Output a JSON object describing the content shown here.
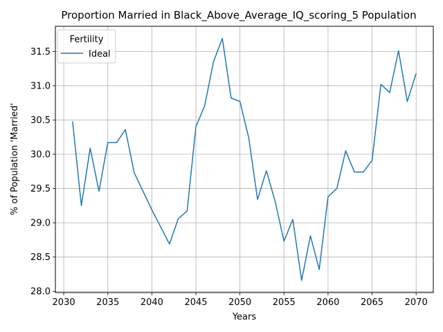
{
  "chart_data": {
    "type": "line",
    "title": "Proportion Married in Black_Above_Average_IQ_scoring_5 Population",
    "xlabel": "Years",
    "ylabel": "% of Population 'Married'",
    "xlim": [
      2029.05,
      2071.95
    ],
    "ylim": [
      27.982,
      31.867
    ],
    "x_ticks": [
      2030,
      2035,
      2040,
      2045,
      2050,
      2055,
      2060,
      2065,
      2070
    ],
    "y_ticks": [
      28.0,
      28.5,
      29.0,
      29.5,
      30.0,
      30.5,
      31.0,
      31.5
    ],
    "grid": true,
    "legend": {
      "title": "Fertility",
      "position": "upper-left"
    },
    "series": [
      {
        "name": "Ideal",
        "color": "#1f77b4",
        "x": [
          2031,
          2032,
          2033,
          2034,
          2035,
          2036,
          2037,
          2038,
          2039,
          2040,
          2041,
          2042,
          2043,
          2044,
          2045,
          2046,
          2047,
          2048,
          2049,
          2050,
          2051,
          2052,
          2053,
          2054,
          2055,
          2056,
          2057,
          2058,
          2059,
          2060,
          2061,
          2062,
          2063,
          2064,
          2065,
          2066,
          2067,
          2068,
          2069,
          2070
        ],
        "values": [
          30.48,
          29.25,
          30.09,
          29.46,
          30.17,
          30.17,
          30.36,
          29.73,
          29.46,
          29.19,
          28.94,
          28.69,
          29.06,
          29.17,
          30.4,
          30.71,
          31.35,
          31.69,
          30.82,
          30.77,
          30.24,
          29.34,
          29.76,
          29.31,
          28.73,
          29.05,
          28.16,
          28.81,
          28.32,
          29.38,
          29.5,
          30.05,
          29.74,
          29.74,
          29.91,
          31.02,
          30.9,
          31.51,
          30.77,
          31.18
        ]
      }
    ]
  }
}
